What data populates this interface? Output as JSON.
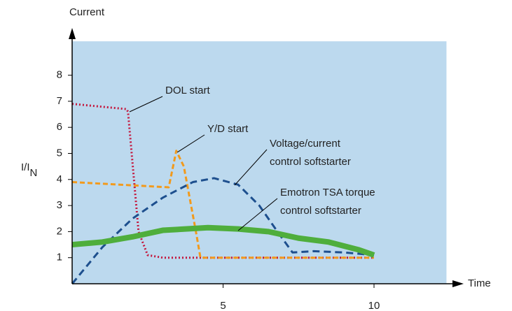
{
  "chart_data": {
    "type": "line",
    "ylabel_main": "Current",
    "ylabel": "I/I",
    "ylabel_sub": "N",
    "xlabel": "Time",
    "xlim": [
      0,
      12.4
    ],
    "ylim": [
      0,
      9.3
    ],
    "xticks": [
      5,
      10
    ],
    "yticks": [
      1,
      2,
      3,
      4,
      5,
      6,
      7,
      8
    ],
    "background": "#bcd9ee",
    "series": [
      {
        "name": "DOL start",
        "color": "#c4163c",
        "line_style": "dotted",
        "x": [
          0,
          1.8,
          1.85,
          2.2,
          2.5,
          3,
          10
        ],
        "values": [
          6.9,
          6.7,
          6.6,
          2,
          1.1,
          1,
          1
        ]
      },
      {
        "name": "Y/D start",
        "color": "#f29a1c",
        "line_style": "dashed",
        "x": [
          0,
          3.2,
          3.45,
          3.7,
          4.1,
          4.25,
          10
        ],
        "values": [
          3.9,
          3.7,
          5.1,
          4.5,
          2,
          1,
          1
        ]
      },
      {
        "name": "Voltage/current control softstarter",
        "color": "#1d4f8e",
        "line_style": "longdash",
        "x": [
          0,
          1,
          2,
          3,
          4,
          4.7,
          5.5,
          6.2,
          6.8,
          7.3,
          8,
          9,
          10
        ],
        "values": [
          0,
          1.4,
          2.5,
          3.3,
          3.9,
          4.05,
          3.8,
          3,
          2,
          1.2,
          1.25,
          1.2,
          1.1
        ]
      },
      {
        "name": "Emotron TSA torque control softstarter",
        "color": "#4fae3c",
        "line_style": "thick",
        "x": [
          0,
          1,
          2,
          3,
          4.5,
          5.5,
          6.5,
          7.5,
          8.5,
          9.5,
          10
        ],
        "values": [
          1.5,
          1.6,
          1.8,
          2.05,
          2.15,
          2.1,
          2,
          1.75,
          1.6,
          1.3,
          1.1
        ]
      }
    ]
  }
}
